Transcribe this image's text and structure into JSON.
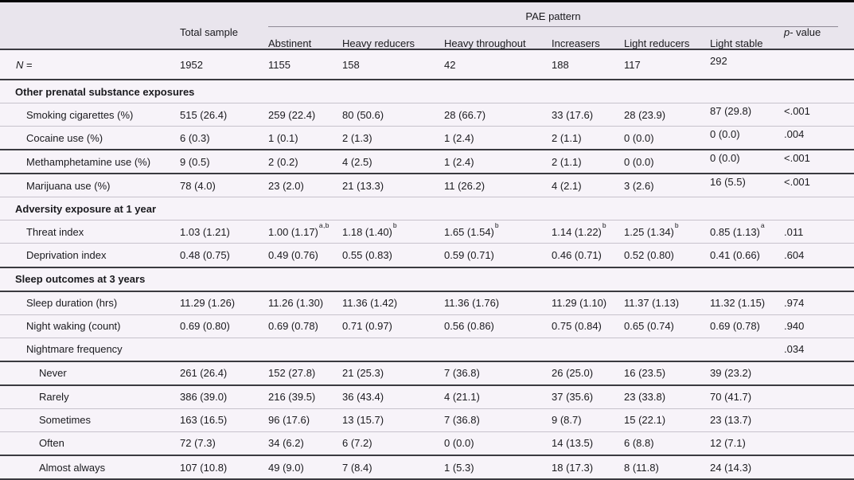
{
  "header": {
    "spanner_label": "PAE pattern",
    "total_col": "Total sample",
    "pattern_cols": [
      "Abstinent",
      "Heavy reducers",
      "Heavy throughout",
      "Increasers",
      "Light reducers",
      "Light stable"
    ],
    "p_col": {
      "italic": "p",
      "rest": "- value"
    }
  },
  "n_row": {
    "label_italic": "N",
    "label_rest": " =",
    "cells": [
      "1952",
      "1155",
      "158",
      "42",
      "188",
      "117",
      "292",
      ""
    ],
    "raised_tail": true,
    "rule": "dark"
  },
  "rows": [
    {
      "type": "section",
      "label": "Other prenatal substance exposures",
      "rule": "light"
    },
    {
      "type": "data",
      "indent": 1,
      "label": "Smoking cigarettes (%)",
      "cells": [
        "515 (26.4)",
        "259 (22.4)",
        "80 (50.6)",
        "28 (66.7)",
        "33 (17.6)",
        "28 (23.9)",
        "87 (29.8)",
        "<.001"
      ],
      "raised_tail": true,
      "rule": "light"
    },
    {
      "type": "data",
      "indent": 1,
      "label": "Cocaine use (%)",
      "cells": [
        "6 (0.3)",
        "1 (0.1)",
        "2 (1.3)",
        "1 (2.4)",
        "2 (1.1)",
        "0 (0.0)",
        "0 (0.0)",
        ".004"
      ],
      "raised_tail": true,
      "rule": "dark"
    },
    {
      "type": "data",
      "indent": 1,
      "label": "Methamphetamine use (%)",
      "cells": [
        "9 (0.5)",
        "2 (0.2)",
        "4 (2.5)",
        "1 (2.4)",
        "2 (1.1)",
        "0 (0.0)",
        "0 (0.0)",
        "<.001"
      ],
      "raised_tail": true,
      "rule": "dark"
    },
    {
      "type": "data",
      "indent": 1,
      "label": "Marijuana use (%)",
      "cells": [
        "78 (4.0)",
        "23 (2.0)",
        "21 (13.3)",
        "11 (26.2)",
        "4 (2.1)",
        "3 (2.6)",
        "16 (5.5)",
        "<.001"
      ],
      "raised_tail": true,
      "rule": "light"
    },
    {
      "type": "section",
      "label": "Adversity exposure at 1 year",
      "rule": "light"
    },
    {
      "type": "data",
      "indent": 1,
      "label": "Threat index",
      "cells": [
        "1.03 (1.21)",
        {
          "t": "1.00 (1.17)",
          "sup": "a,b"
        },
        {
          "t": "1.18 (1.40)",
          "sup": "b"
        },
        {
          "t": "1.65 (1.54)",
          "sup": "b"
        },
        {
          "t": "1.14 (1.22)",
          "sup": "b"
        },
        {
          "t": "1.25 (1.34)",
          "sup": "b"
        },
        {
          "t": "0.85 (1.13)",
          "sup": "a"
        },
        ".011"
      ],
      "rule": "light"
    },
    {
      "type": "data",
      "indent": 1,
      "label": "Deprivation index",
      "cells": [
        "0.48 (0.75)",
        "0.49 (0.76)",
        "0.55 (0.83)",
        "0.59 (0.71)",
        "0.46 (0.71)",
        "0.52 (0.80)",
        "0.41 (0.66)",
        ".604"
      ],
      "rule": "dark"
    },
    {
      "type": "section",
      "label": "Sleep outcomes at 3 years",
      "rule": "dark"
    },
    {
      "type": "data",
      "indent": 1,
      "label": "Sleep duration (hrs)",
      "cells": [
        "11.29 (1.26)",
        "11.26 (1.30)",
        "11.36 (1.42)",
        "11.36 (1.76)",
        "11.29 (1.10)",
        "11.37 (1.13)",
        "11.32 (1.15)",
        ".974"
      ],
      "rule": "light"
    },
    {
      "type": "data",
      "indent": 1,
      "label": "Night waking (count)",
      "cells": [
        "0.69 (0.80)",
        "0.69 (0.78)",
        "0.71 (0.97)",
        "0.56 (0.86)",
        "0.75 (0.84)",
        "0.65 (0.74)",
        "0.69 (0.78)",
        ".940"
      ],
      "rule": "light"
    },
    {
      "type": "data",
      "indent": 1,
      "label": "Nightmare frequency",
      "cells": [
        "",
        "",
        "",
        "",
        "",
        "",
        "",
        ".034"
      ],
      "rule": "dark"
    },
    {
      "type": "data",
      "indent": 2,
      "label": "Never",
      "cells": [
        "261 (26.4)",
        "152 (27.8)",
        "21 (25.3)",
        "7 (36.8)",
        "26 (25.0)",
        "16 (23.5)",
        "39 (23.2)",
        ""
      ],
      "rule": "dark"
    },
    {
      "type": "data",
      "indent": 2,
      "label": "Rarely",
      "cells": [
        "386 (39.0)",
        "216 (39.5)",
        "36 (43.4)",
        "4 (21.1)",
        "37 (35.6)",
        "23 (33.8)",
        "70 (41.7)",
        ""
      ],
      "rule": "light"
    },
    {
      "type": "data",
      "indent": 2,
      "label": "Sometimes",
      "cells": [
        "163 (16.5)",
        "96 (17.6)",
        "13 (15.7)",
        "7 (36.8)",
        "9 (8.7)",
        "15 (22.1)",
        "23 (13.7)",
        ""
      ],
      "rule": "light"
    },
    {
      "type": "data",
      "indent": 2,
      "label": "Often",
      "cells": [
        "72 (7.3)",
        "34 (6.2)",
        "6 (7.2)",
        "0 (0.0)",
        "14 (13.5)",
        "6 (8.8)",
        "12 (7.1)",
        ""
      ],
      "rule": "dark"
    },
    {
      "type": "data",
      "indent": 2,
      "label": "Almost always",
      "cells": [
        "107 (10.8)",
        "49 (9.0)",
        "7 (8.4)",
        "1 (5.3)",
        "18 (17.3)",
        "8 (11.8)",
        "24 (14.3)",
        ""
      ],
      "rule": "light"
    }
  ],
  "colors": {
    "header_bg": "#e9e5ed",
    "body_bg": "#f7f3f9",
    "rule_light": "#c7c2cc",
    "rule_dark": "#3a3a40",
    "rule_black": "#060608",
    "text": "#1a1a1e"
  }
}
